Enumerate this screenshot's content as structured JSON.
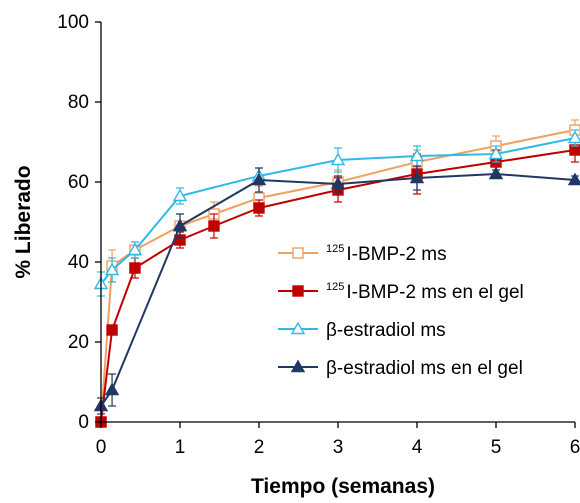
{
  "chart_data": {
    "type": "line",
    "xlabel": "Tiempo (semanas)",
    "ylabel": "% Liberado",
    "xlim": [
      0,
      6
    ],
    "ylim": [
      0,
      100
    ],
    "xticks": [
      "0",
      "1",
      "2",
      "3",
      "4",
      "5",
      "6"
    ],
    "yticks": [
      "0",
      "20",
      "40",
      "60",
      "80",
      "100"
    ],
    "grid": false,
    "legend_position": "center-right",
    "series": [
      {
        "name_sup": "125",
        "name_main": "I-BMP-2 ms",
        "color": "#f0a060",
        "marker": "open-square",
        "points": [
          {
            "x": 0.0,
            "y": 0,
            "err": 0
          },
          {
            "x": 0.14,
            "y": 39,
            "err": 4
          },
          {
            "x": 0.43,
            "y": 43,
            "err": 2
          },
          {
            "x": 1.0,
            "y": 49,
            "err": 3
          },
          {
            "x": 1.43,
            "y": 52,
            "err": 3
          },
          {
            "x": 2.0,
            "y": 56,
            "err": 3
          },
          {
            "x": 3.0,
            "y": 60,
            "err": 3
          },
          {
            "x": 4.0,
            "y": 65,
            "err": 3
          },
          {
            "x": 5.0,
            "y": 69,
            "err": 2.5
          },
          {
            "x": 6.0,
            "y": 73,
            "err": 2.5
          }
        ]
      },
      {
        "name_sup": "125",
        "name_main": "I-BMP-2 ms en el gel",
        "color": "#c00000",
        "marker": "filled-square",
        "points": [
          {
            "x": 0.0,
            "y": 0,
            "err": 0
          },
          {
            "x": 0.14,
            "y": 23,
            "err": 1
          },
          {
            "x": 0.43,
            "y": 38.5,
            "err": 2.5
          },
          {
            "x": 1.0,
            "y": 45.5,
            "err": 2
          },
          {
            "x": 1.43,
            "y": 49,
            "err": 3
          },
          {
            "x": 2.0,
            "y": 53.5,
            "err": 2
          },
          {
            "x": 3.0,
            "y": 58,
            "err": 3
          },
          {
            "x": 4.0,
            "y": 62,
            "err": 5
          },
          {
            "x": 5.0,
            "y": 65,
            "err": 3
          },
          {
            "x": 6.0,
            "y": 68,
            "err": 3
          }
        ]
      },
      {
        "name_sup": "",
        "name_main": "β-estradiol ms",
        "color": "#30b8e8",
        "marker": "open-triangle",
        "points": [
          {
            "x": 0.0,
            "y": 34.5,
            "err": 3
          },
          {
            "x": 0.14,
            "y": 38,
            "err": 3
          },
          {
            "x": 0.43,
            "y": 43,
            "err": 2
          },
          {
            "x": 1.0,
            "y": 56.5,
            "err": 2
          },
          {
            "x": 2.0,
            "y": 61.5,
            "err": 2
          },
          {
            "x": 3.0,
            "y": 65.5,
            "err": 3
          },
          {
            "x": 4.0,
            "y": 66.5,
            "err": 2.5
          },
          {
            "x": 5.0,
            "y": 67,
            "err": 2
          },
          {
            "x": 6.0,
            "y": 71,
            "err": 2
          }
        ]
      },
      {
        "name_sup": "",
        "name_main": "β-estradiol ms en el gel",
        "color": "#1f3864",
        "marker": "filled-triangle",
        "points": [
          {
            "x": 0.0,
            "y": 4,
            "err": 2
          },
          {
            "x": 0.14,
            "y": 8,
            "err": 4
          },
          {
            "x": 1.0,
            "y": 49,
            "err": 3
          },
          {
            "x": 2.0,
            "y": 60.5,
            "err": 3
          },
          {
            "x": 3.0,
            "y": 59.5,
            "err": 2
          },
          {
            "x": 4.0,
            "y": 61,
            "err": 3
          },
          {
            "x": 5.0,
            "y": 62,
            "err": 1
          },
          {
            "x": 6.0,
            "y": 60.5,
            "err": 1
          }
        ]
      }
    ]
  }
}
